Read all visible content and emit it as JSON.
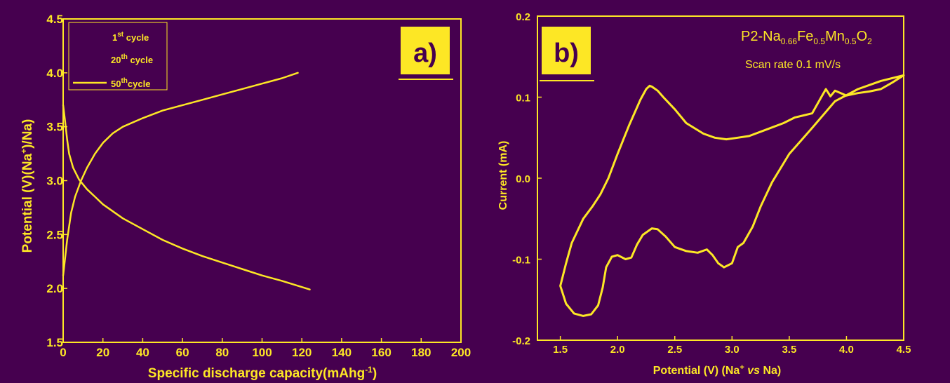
{
  "colors": {
    "background": "#46004f",
    "foreground": "#fde725"
  },
  "chart_data": [
    {
      "type": "line",
      "panel_label": "a)",
      "xlabel": "Specific discharge capacity(mAhg",
      "xlabel_sup": "-1",
      "xlabel_end": ")",
      "ylabel": "Potential (V)(Na",
      "ylabel_sup": "+",
      "ylabel_end": ")/Na)",
      "xlim": [
        0,
        200
      ],
      "ylim": [
        1.5,
        4.5
      ],
      "xticks": [
        0,
        20,
        40,
        60,
        80,
        100,
        120,
        140,
        160,
        180,
        200
      ],
      "yticks": [
        "1.5",
        "2.0",
        "2.5",
        "3.0",
        "3.5",
        "4.0",
        "4.5"
      ],
      "legend_position": "top-left",
      "legend": [
        {
          "pre": "1",
          "sup": "st",
          "post": " cycle"
        },
        {
          "pre": "20",
          "sup": "th",
          "post": " cycle"
        },
        {
          "pre": "50",
          "sup": "th",
          "post": "cycle"
        }
      ],
      "series": [
        {
          "name": "50th cycle (charge)",
          "x": [
            0,
            2,
            4,
            6,
            9,
            12,
            16,
            20,
            25,
            30,
            40,
            50,
            60,
            70,
            80,
            90,
            100,
            110,
            118
          ],
          "y": [
            2.12,
            2.45,
            2.7,
            2.85,
            3.0,
            3.12,
            3.25,
            3.35,
            3.44,
            3.5,
            3.58,
            3.65,
            3.7,
            3.75,
            3.8,
            3.85,
            3.9,
            3.95,
            4.0
          ]
        },
        {
          "name": "50th cycle (discharge)",
          "x": [
            0,
            1,
            2,
            3,
            5,
            8,
            12,
            16,
            20,
            30,
            40,
            50,
            60,
            70,
            80,
            90,
            100,
            110,
            124
          ],
          "y": [
            3.7,
            3.55,
            3.38,
            3.25,
            3.12,
            3.01,
            2.92,
            2.85,
            2.78,
            2.65,
            2.55,
            2.45,
            2.37,
            2.3,
            2.24,
            2.18,
            2.12,
            2.07,
            1.99
          ]
        }
      ]
    },
    {
      "type": "line",
      "panel_label": "b)",
      "formula": [
        {
          "t": "P2-Na"
        },
        {
          "t": "0.66",
          "sub": true
        },
        {
          "t": "Fe"
        },
        {
          "t": "0.5",
          "sub": true
        },
        {
          "t": "Mn"
        },
        {
          "t": "0.5",
          "sub": true
        },
        {
          "t": "O"
        },
        {
          "t": "2",
          "sub": true
        }
      ],
      "scan_rate": "Scan rate 0.1 mV/s",
      "xlabel": "Potential (V) (Na",
      "xlabel_sup": "+",
      "xlabel_vs": " vs",
      "xlabel_end": " Na)",
      "ylabel": "Current (mA)",
      "xlim": [
        1.3,
        4.5
      ],
      "ylim": [
        -0.2,
        0.2
      ],
      "xticks": [
        "1.5",
        "2.0",
        "2.5",
        "3.0",
        "3.5",
        "4.0",
        "4.5"
      ],
      "yticks": [
        "-0.2",
        "-0.1",
        "0.0",
        "0.1",
        "0.2"
      ],
      "series": [
        {
          "name": "CV curve",
          "x": [
            1.5,
            1.55,
            1.62,
            1.7,
            1.77,
            1.83,
            1.87,
            1.9,
            1.95,
            2.0,
            2.07,
            2.12,
            2.17,
            2.22,
            2.3,
            2.35,
            2.42,
            2.5,
            2.6,
            2.7,
            2.78,
            2.83,
            2.88,
            2.93,
            3.0,
            3.05,
            3.1,
            3.18,
            3.25,
            3.35,
            3.5,
            3.7,
            3.9,
            4.1,
            4.3,
            4.5,
            4.4,
            4.3,
            4.2,
            4.1,
            4.0,
            3.9,
            3.86,
            3.82,
            3.78,
            3.7,
            3.55,
            3.45,
            3.3,
            3.15,
            3.05,
            2.95,
            2.85,
            2.75,
            2.6,
            2.5,
            2.4,
            2.35,
            2.3,
            2.28,
            2.25,
            2.2,
            2.1,
            2.0,
            1.92,
            1.85,
            1.78,
            1.7,
            1.6,
            1.55,
            1.5
          ],
          "y": [
            -0.133,
            -0.155,
            -0.167,
            -0.17,
            -0.168,
            -0.157,
            -0.135,
            -0.11,
            -0.097,
            -0.095,
            -0.1,
            -0.098,
            -0.082,
            -0.07,
            -0.062,
            -0.063,
            -0.072,
            -0.085,
            -0.09,
            -0.092,
            -0.088,
            -0.095,
            -0.105,
            -0.11,
            -0.105,
            -0.085,
            -0.08,
            -0.06,
            -0.035,
            -0.005,
            0.03,
            0.062,
            0.095,
            0.11,
            0.12,
            0.127,
            0.118,
            0.11,
            0.107,
            0.105,
            0.102,
            0.108,
            0.101,
            0.11,
            0.1,
            0.08,
            0.075,
            0.068,
            0.06,
            0.052,
            0.05,
            0.048,
            0.05,
            0.055,
            0.068,
            0.085,
            0.1,
            0.108,
            0.113,
            0.114,
            0.11,
            0.097,
            0.065,
            0.03,
            0.0,
            -0.02,
            -0.035,
            -0.05,
            -0.08,
            -0.105,
            -0.133
          ]
        }
      ]
    }
  ]
}
